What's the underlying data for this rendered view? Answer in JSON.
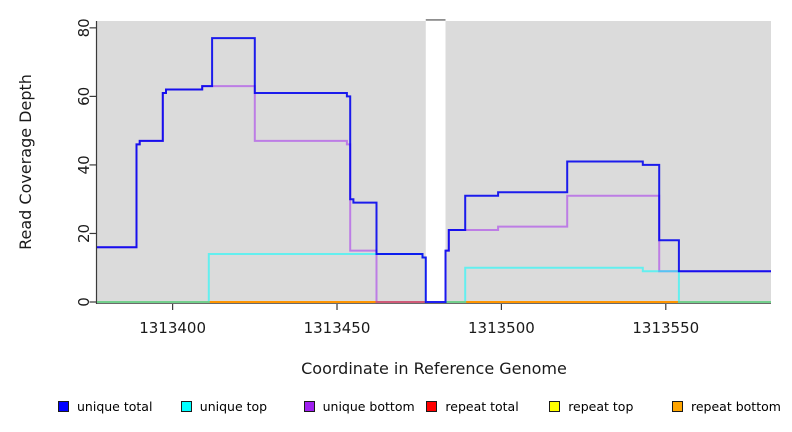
{
  "chart_data": {
    "type": "line",
    "subtype": "step-coverage-plot",
    "title": "",
    "xlabel": "Coordinate in Reference Genome",
    "ylabel": "Read Coverage Depth",
    "xlim": [
      1313377,
      1313582
    ],
    "ylim": [
      0,
      82
    ],
    "x_ticks": [
      1313400,
      1313450,
      1313500,
      1313550
    ],
    "y_ticks": [
      0,
      20,
      40,
      60,
      80
    ],
    "grid": false,
    "legend_position": "bottom",
    "colors": {
      "plot_bg": "#dbdbdb",
      "axis": "#3a3a3a",
      "text": "#1a1a1a"
    },
    "gap_band": {
      "from": 1313477,
      "to": 1313483,
      "fill": "#ffffff",
      "edge": "#8f8f8f"
    },
    "series": [
      {
        "name": "repeat total",
        "color": "#FF0000",
        "opacity": 1,
        "points": [
          [
            1313377,
            0
          ],
          [
            1313582,
            0
          ]
        ]
      },
      {
        "name": "repeat top",
        "color": "#FFFF00",
        "opacity": 1,
        "points": [
          [
            1313377,
            0
          ],
          [
            1313582,
            0
          ]
        ]
      },
      {
        "name": "repeat bottom",
        "color": "#FF9500",
        "opacity": 1,
        "points": [
          [
            1313377,
            0
          ],
          [
            1313582,
            0
          ]
        ]
      },
      {
        "name": "unique bottom",
        "color": "#A020F0",
        "opacity": 0.5,
        "points": [
          [
            1313377,
            16
          ],
          [
            1313389,
            46
          ],
          [
            1313390,
            47
          ],
          [
            1313397,
            61
          ],
          [
            1313398,
            62
          ],
          [
            1313409,
            63
          ],
          [
            1313425,
            47
          ],
          [
            1313453,
            46
          ],
          [
            1313454,
            15
          ],
          [
            1313462,
            0
          ],
          [
            1313483,
            15
          ],
          [
            1313484,
            21
          ],
          [
            1313499,
            22
          ],
          [
            1313520,
            31
          ],
          [
            1313548,
            9
          ],
          [
            1313582,
            9
          ]
        ]
      },
      {
        "name": "unique top",
        "color": "#00FFFF",
        "opacity": 0.55,
        "points": [
          [
            1313377,
            0
          ],
          [
            1313411,
            14
          ],
          [
            1313476,
            13
          ],
          [
            1313477,
            0
          ],
          [
            1313489,
            10
          ],
          [
            1313543,
            9
          ],
          [
            1313554,
            0
          ],
          [
            1313582,
            0
          ]
        ]
      },
      {
        "name": "unique total",
        "color": "#0000EE",
        "opacity": 0.88,
        "above_gap": true,
        "points": [
          [
            1313377,
            16
          ],
          [
            1313389,
            46
          ],
          [
            1313390,
            47
          ],
          [
            1313397,
            61
          ],
          [
            1313398,
            62
          ],
          [
            1313409,
            63
          ],
          [
            1313412,
            77
          ],
          [
            1313425,
            61
          ],
          [
            1313453,
            60
          ],
          [
            1313454,
            30
          ],
          [
            1313455,
            29
          ],
          [
            1313462,
            14
          ],
          [
            1313476,
            13
          ],
          [
            1313477,
            0
          ],
          [
            1313483,
            15
          ],
          [
            1313484,
            21
          ],
          [
            1313489,
            31
          ],
          [
            1313499,
            32
          ],
          [
            1313520,
            41
          ],
          [
            1313543,
            40
          ],
          [
            1313548,
            18
          ],
          [
            1313554,
            9
          ],
          [
            1313582,
            9
          ]
        ]
      }
    ],
    "legend": [
      {
        "label": "unique total",
        "color": "#0000FF"
      },
      {
        "label": "unique top",
        "color": "#00FFFF"
      },
      {
        "label": "unique bottom",
        "color": "#A020F0"
      },
      {
        "label": "repeat total",
        "color": "#FF0000"
      },
      {
        "label": "repeat top",
        "color": "#FFFF00"
      },
      {
        "label": "repeat bottom",
        "color": "#FFA500"
      }
    ]
  }
}
